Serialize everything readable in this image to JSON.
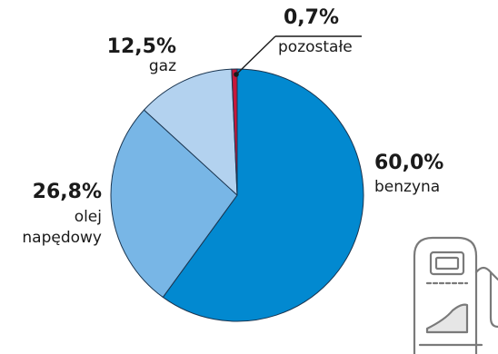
{
  "chart_data": {
    "type": "pie",
    "slices": [
      {
        "label": "benzyna",
        "value": 60.0,
        "value_label": "60,0%",
        "color": "#0289d0"
      },
      {
        "label": "olej napędowy",
        "value": 26.8,
        "value_label": "26,8%",
        "color": "#78b6e6"
      },
      {
        "label": "gaz",
        "value": 12.5,
        "value_label": "12,5%",
        "color": "#b3d2ef"
      },
      {
        "label": "pozostałe",
        "value": 0.7,
        "value_label": "0,7%",
        "color": "#c8173a"
      }
    ],
    "title": ""
  },
  "labels": {
    "benzyna": {
      "pct": "60,0%",
      "name": "benzyna"
    },
    "olej": {
      "pct": "26,8%",
      "line1": "olej",
      "line2": "napędowy"
    },
    "gaz": {
      "pct": "12,5%",
      "name": "gaz"
    },
    "pozostale": {
      "pct": "0,7%",
      "name": "pozostałe"
    }
  },
  "icons": {
    "decoration": "fuel-pump-icon"
  }
}
